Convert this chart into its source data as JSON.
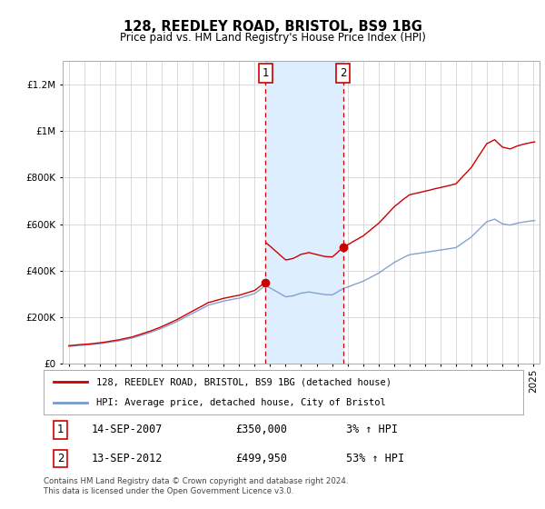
{
  "title": "128, REEDLEY ROAD, BRISTOL, BS9 1BG",
  "subtitle": "Price paid vs. HM Land Registry's House Price Index (HPI)",
  "sale1_year": 2007.708,
  "sale1_price": 350000,
  "sale2_year": 2012.708,
  "sale2_price": 499950,
  "ylim": [
    0,
    1300000
  ],
  "yticks": [
    0,
    200000,
    400000,
    600000,
    800000,
    1000000,
    1200000
  ],
  "legend_line1": "128, REEDLEY ROAD, BRISTOL, BS9 1BG (detached house)",
  "legend_line2": "HPI: Average price, detached house, City of Bristol",
  "ann1_date": "14-SEP-2007",
  "ann1_price": "£350,000",
  "ann1_hpi": "3% ↑ HPI",
  "ann2_date": "13-SEP-2012",
  "ann2_price": "£499,950",
  "ann2_hpi": "53% ↑ HPI",
  "footer": "Contains HM Land Registry data © Crown copyright and database right 2024.\nThis data is licensed under the Open Government Licence v3.0.",
  "line_color_red": "#cc0000",
  "line_color_blue": "#7799cc",
  "shade_color": "#ddeeff",
  "box_color": "#cc0000",
  "background_color": "#ffffff"
}
